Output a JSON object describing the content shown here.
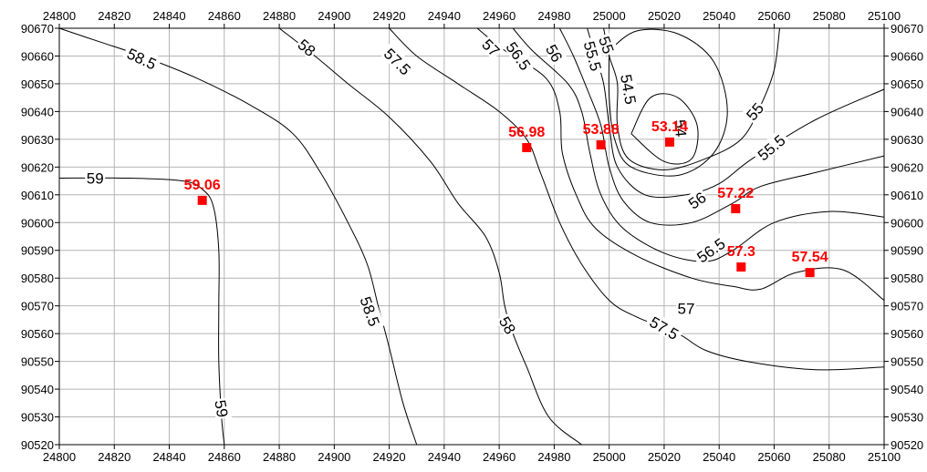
{
  "chart_data": {
    "type": "contour",
    "title": "",
    "xlabel": "",
    "ylabel": "",
    "xlim": [
      24800,
      25100
    ],
    "ylim": [
      90520,
      90670
    ],
    "grid": true,
    "x_ticks": [
      "24800",
      "24820",
      "24840",
      "24860",
      "24880",
      "24900",
      "24920",
      "24940",
      "24960",
      "24980",
      "25000",
      "25020",
      "25040",
      "25060",
      "25080",
      "25100"
    ],
    "y_ticks": [
      "90520",
      "90530",
      "90540",
      "90550",
      "90560",
      "90570",
      "90580",
      "90590",
      "90600",
      "90610",
      "90620",
      "90630",
      "90640",
      "90650",
      "90660",
      "90670"
    ],
    "marker_color": "#ff0000",
    "points": [
      {
        "x": 24852,
        "y": 90608,
        "label": "59.06"
      },
      {
        "x": 24970,
        "y": 90627,
        "label": "56.98"
      },
      {
        "x": 24997,
        "y": 90628,
        "label": "53.88"
      },
      {
        "x": 25022,
        "y": 90629,
        "label": "53.14"
      },
      {
        "x": 25046,
        "y": 90605,
        "label": "57.22"
      },
      {
        "x": 25048,
        "y": 90584,
        "label": "57.3"
      },
      {
        "x": 25073,
        "y": 90582,
        "label": "57.54"
      }
    ],
    "contours": [
      {
        "level": "59",
        "paths": [
          [
            [
              24800,
              90616
            ],
            [
              24825,
              90616
            ],
            [
              24845,
              90615
            ],
            [
              24852,
              90612
            ],
            [
              24856,
              90606
            ],
            [
              24858,
              90590
            ],
            [
              24858,
              90570
            ],
            [
              24858,
              90550
            ],
            [
              24859,
              90530
            ],
            [
              24860,
              90520
            ]
          ]
        ],
        "labels": [
          {
            "x": 24813,
            "y": 90616,
            "angle": 0
          },
          {
            "x": 24859,
            "y": 90533,
            "angle": 80
          }
        ]
      },
      {
        "level": "58.5",
        "paths": [
          [
            [
              24800,
              90670
            ],
            [
              24815,
              90665
            ],
            [
              24830,
              90660
            ],
            [
              24850,
              90652
            ],
            [
              24870,
              90642
            ],
            [
              24885,
              90632
            ],
            [
              24895,
              90618
            ],
            [
              24905,
              90600
            ],
            [
              24912,
              90585
            ],
            [
              24916,
              90570
            ],
            [
              24920,
              90555
            ],
            [
              24925,
              90535
            ],
            [
              24930,
              90520
            ]
          ]
        ],
        "labels": [
          {
            "x": 24830,
            "y": 90659,
            "angle": 25
          },
          {
            "x": 24913,
            "y": 90568,
            "angle": 70
          }
        ]
      },
      {
        "level": "58",
        "paths": [
          [
            [
              24880,
              90670
            ],
            [
              24893,
              90660
            ],
            [
              24905,
              90650
            ],
            [
              24920,
              90638
            ],
            [
              24935,
              90622
            ],
            [
              24945,
              90607
            ],
            [
              24955,
              90595
            ],
            [
              24960,
              90582
            ],
            [
              24962,
              90570
            ],
            [
              24965,
              90560
            ],
            [
              24970,
              90548
            ],
            [
              24978,
              90530
            ],
            [
              24990,
              90520
            ]
          ]
        ],
        "labels": [
          {
            "x": 24890,
            "y": 90663,
            "angle": 40
          },
          {
            "x": 24963,
            "y": 90563,
            "angle": 60
          }
        ]
      },
      {
        "level": "57.5",
        "paths": [
          [
            [
              24920,
              90670
            ],
            [
              24930,
              90660
            ],
            [
              24945,
              90650
            ],
            [
              24960,
              90640
            ],
            [
              24970,
              90630
            ],
            [
              24975,
              90618
            ],
            [
              24982,
              90600
            ],
            [
              24990,
              90585
            ],
            [
              25000,
              90572
            ],
            [
              25010,
              90566
            ],
            [
              25025,
              90560
            ],
            [
              25035,
              90554
            ],
            [
              25050,
              90550
            ],
            [
              25075,
              90547
            ],
            [
              25100,
              90548
            ]
          ]
        ],
        "labels": [
          {
            "x": 24923,
            "y": 90658,
            "angle": 45
          },
          {
            "x": 25020,
            "y": 90562,
            "angle": 30
          }
        ]
      },
      {
        "level": "57",
        "paths": [
          [
            [
              24952,
              90670
            ],
            [
              24962,
              90662
            ],
            [
              24977,
              90652
            ],
            [
              24982,
              90640
            ],
            [
              24983,
              90625
            ],
            [
              24988,
              90610
            ],
            [
              24995,
              90598
            ],
            [
              25010,
              90588
            ],
            [
              25030,
              90580
            ],
            [
              25045,
              90577
            ],
            [
              25055,
              90576
            ],
            [
              25068,
              90582
            ],
            [
              25085,
              90583
            ],
            [
              25100,
              90572
            ]
          ]
        ],
        "labels": [
          {
            "x": 24957,
            "y": 90663,
            "angle": 45
          },
          {
            "x": 25028,
            "y": 90569,
            "angle": 0
          }
        ]
      },
      {
        "level": "56.5",
        "paths": [
          [
            [
              24965,
              90670
            ],
            [
              24972,
              90662
            ],
            [
              24985,
              90650
            ],
            [
              24990,
              90640
            ],
            [
              24993,
              90625
            ],
            [
              24997,
              90610
            ],
            [
              25005,
              90598
            ],
            [
              25020,
              90589
            ],
            [
              25035,
              90586
            ],
            [
              25045,
              90590
            ],
            [
              25060,
              90600
            ],
            [
              25080,
              90604
            ],
            [
              25100,
              90602
            ]
          ]
        ],
        "labels": [
          {
            "x": 24967,
            "y": 90660,
            "angle": 55
          },
          {
            "x": 25037,
            "y": 90590,
            "angle": -35
          }
        ]
      },
      {
        "level": "56",
        "paths": [
          [
            [
              24982,
              90670
            ],
            [
              24987,
              90660
            ],
            [
              24992,
              90648
            ],
            [
              24997,
              90635
            ],
            [
              25000,
              90620
            ],
            [
              25005,
              90608
            ],
            [
              25015,
              90600
            ],
            [
              25030,
              90600
            ],
            [
              25045,
              90607
            ],
            [
              25055,
              90613
            ],
            [
              25075,
              90618
            ],
            [
              25100,
              90624
            ]
          ]
        ],
        "labels": [
          {
            "x": 24980,
            "y": 90661,
            "angle": 60
          },
          {
            "x": 25032,
            "y": 90608,
            "angle": -35
          }
        ]
      },
      {
        "level": "55.5",
        "paths": [
          [
            [
              24992,
              90670
            ],
            [
              24995,
              90660
            ],
            [
              24998,
              90650
            ],
            [
              25000,
              90635
            ],
            [
              25003,
              90620
            ],
            [
              25013,
              90610
            ],
            [
              25028,
              90610
            ],
            [
              25040,
              90614
            ],
            [
              25052,
              90623
            ],
            [
              25075,
              90637
            ],
            [
              25100,
              90648
            ]
          ]
        ],
        "labels": [
          {
            "x": 24994,
            "y": 90660,
            "angle": 75
          },
          {
            "x": 25059,
            "y": 90627,
            "angle": -40
          }
        ]
      },
      {
        "level": "55",
        "paths": [
          [
            [
              24998,
              90670
            ],
            [
              25000,
              90660
            ],
            [
              25003,
              90650
            ],
            [
              25003,
              90635
            ],
            [
              25007,
              90623
            ],
            [
              25020,
              90619
            ],
            [
              25035,
              90623
            ],
            [
              25048,
              90630
            ],
            [
              25055,
              90642
            ],
            [
              25060,
              90655
            ],
            [
              25062,
              90670
            ]
          ]
        ],
        "labels": [
          {
            "x": 24999,
            "y": 90664,
            "angle": 70
          },
          {
            "x": 25053,
            "y": 90640,
            "angle": -50
          }
        ]
      },
      {
        "level": "54.5",
        "paths": [
          [
            [
              25000,
              90662
            ],
            [
              25010,
              90669
            ],
            [
              25025,
              90668
            ],
            [
              25038,
              90658
            ],
            [
              25043,
              90640
            ],
            [
              25038,
              90625
            ],
            [
              25025,
              90617
            ],
            [
              25008,
              90620
            ],
            [
              25002,
              90630
            ],
            [
              25000,
              90645
            ],
            [
              25000,
              90662
            ]
          ]
        ],
        "labels": [
          {
            "x": 25007,
            "y": 90648,
            "angle": 80
          }
        ]
      },
      {
        "level": "54",
        "paths": [
          [
            [
              25008,
              90632
            ],
            [
              25015,
              90645
            ],
            [
              25025,
              90645
            ],
            [
              25032,
              90635
            ],
            [
              25030,
              90623
            ],
            [
              25020,
              90622
            ],
            [
              25008,
              90632
            ]
          ]
        ],
        "labels": [
          {
            "x": 25026,
            "y": 90634,
            "angle": 85
          }
        ]
      }
    ]
  }
}
